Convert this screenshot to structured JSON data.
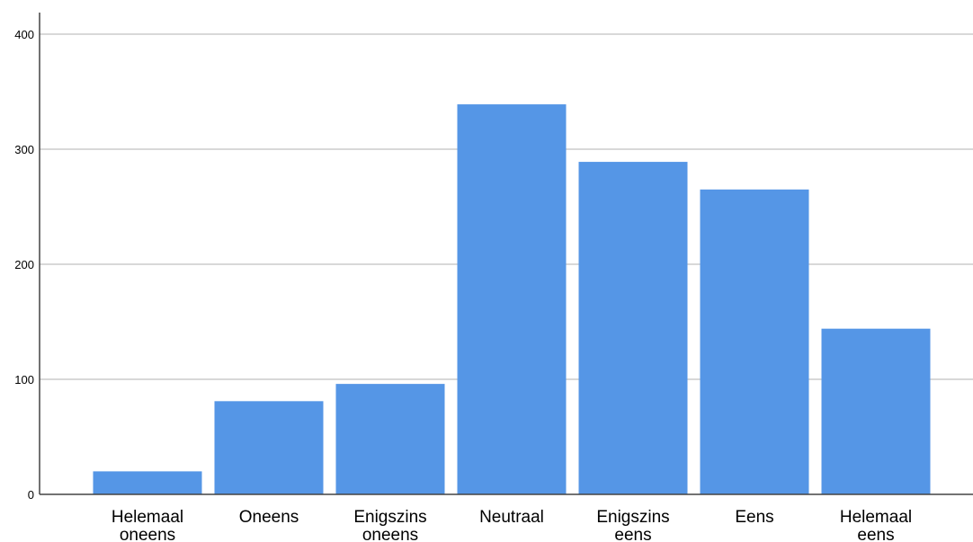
{
  "chart_data": {
    "type": "bar",
    "categories": [
      [
        "Helemaal",
        "oneens"
      ],
      [
        "Oneens"
      ],
      [
        "Enigszins",
        "oneens"
      ],
      [
        "Neutraal"
      ],
      [
        "Enigszins",
        "eens"
      ],
      [
        "Eens"
      ],
      [
        "Helemaal",
        "eens"
      ]
    ],
    "values": [
      20,
      81,
      96,
      339,
      289,
      265,
      144
    ],
    "ylim": [
      0,
      420
    ],
    "yticks": [
      0,
      100,
      200,
      300,
      400
    ],
    "grid": true,
    "bar_color": "#5596e6",
    "grid_color": "#cccccc",
    "axis_color": "#444444"
  }
}
